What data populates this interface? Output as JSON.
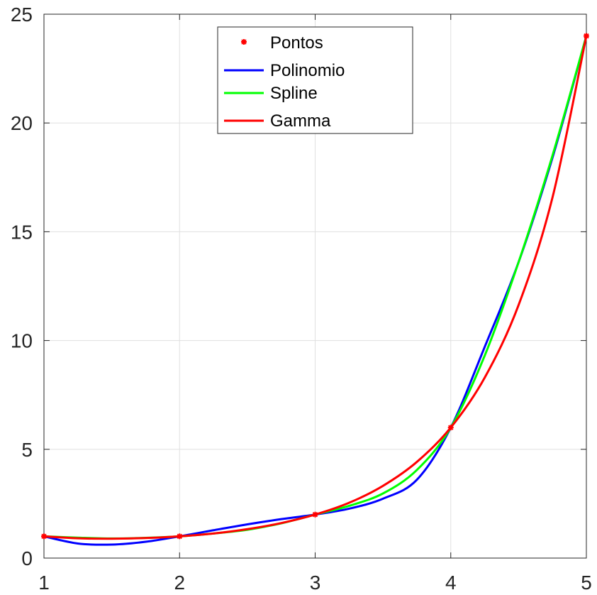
{
  "chart_data": {
    "type": "line",
    "title": "",
    "xlabel": "",
    "ylabel": "",
    "xlim": [
      1,
      5
    ],
    "ylim": [
      0,
      25
    ],
    "xticks": [
      1,
      2,
      3,
      4,
      5
    ],
    "yticks": [
      0,
      5,
      10,
      15,
      20,
      25
    ],
    "grid": true,
    "legend_position": "top-center",
    "series": [
      {
        "name": "Pontos",
        "kind": "markers",
        "color": "#ff0000",
        "x": [
          1,
          2,
          3,
          4,
          5
        ],
        "y": [
          1,
          1,
          2,
          6,
          24
        ]
      },
      {
        "name": "Polinomio",
        "kind": "line",
        "color": "#0000ff",
        "x": [
          1,
          1.25,
          1.5,
          1.75,
          2,
          2.25,
          2.5,
          2.75,
          3,
          3.25,
          3.5,
          3.75,
          4,
          4.25,
          4.5,
          4.75,
          5
        ],
        "y": [
          1,
          0.67,
          0.62,
          0.75,
          1,
          1.28,
          1.55,
          1.79,
          2,
          2.27,
          2.73,
          3.6,
          6,
          9.7,
          13.6,
          18.4,
          24
        ]
      },
      {
        "name": "Spline",
        "kind": "line",
        "color": "#00ff00",
        "x": [
          1,
          1.25,
          1.5,
          1.75,
          2,
          2.25,
          2.5,
          2.75,
          3,
          3.25,
          3.5,
          3.75,
          4,
          4.25,
          4.5,
          4.75,
          5
        ],
        "y": [
          1,
          0.94,
          0.9,
          0.93,
          1,
          1.13,
          1.3,
          1.6,
          2,
          2.4,
          2.97,
          4.05,
          6,
          9.3,
          13.6,
          18.5,
          24
        ]
      },
      {
        "name": "Gamma",
        "kind": "line",
        "color": "#ff0000",
        "x": [
          1,
          1.25,
          1.5,
          1.75,
          2,
          2.25,
          2.5,
          2.75,
          3,
          3.25,
          3.5,
          3.75,
          4,
          4.25,
          4.5,
          4.75,
          5
        ],
        "y": [
          1,
          0.91,
          0.89,
          0.92,
          1,
          1.13,
          1.33,
          1.61,
          2,
          2.54,
          3.32,
          4.42,
          6,
          8.29,
          11.63,
          16.57,
          24
        ]
      }
    ]
  }
}
